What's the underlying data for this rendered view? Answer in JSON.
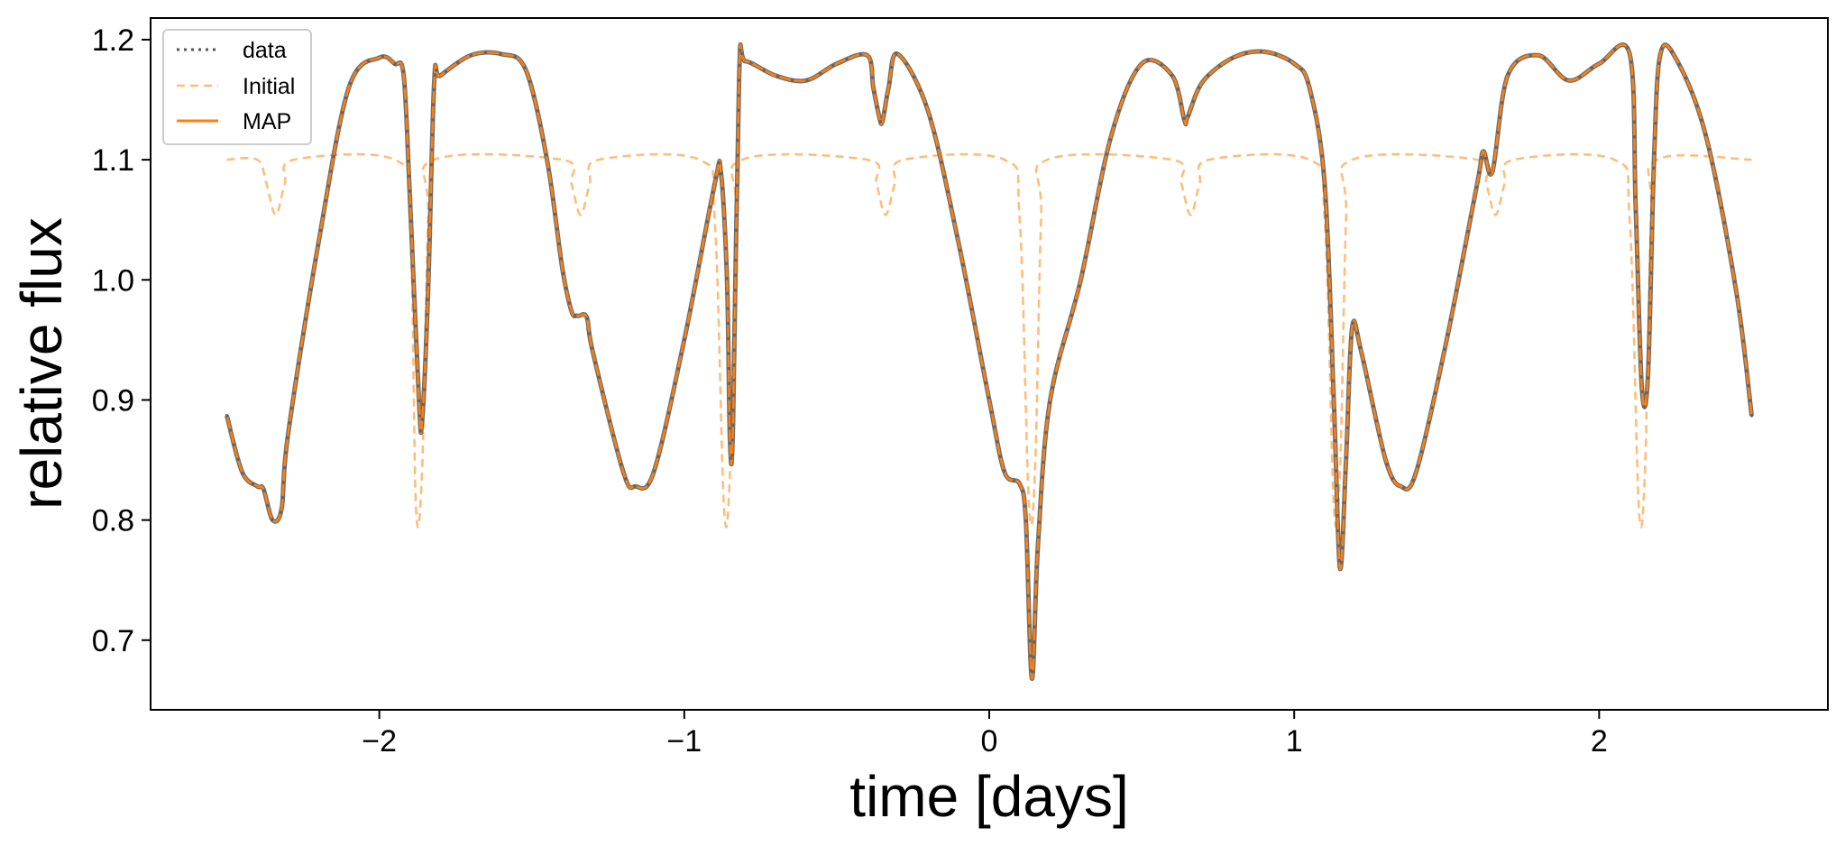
{
  "chart_data": {
    "type": "line",
    "title": "",
    "xlabel": "time [days]",
    "ylabel": "relative flux",
    "xlim": [
      -2.75,
      2.75
    ],
    "ylim": [
      0.642,
      1.218
    ],
    "xticks": [
      -2,
      -1,
      0,
      1,
      2
    ],
    "xtick_labels": [
      "−2",
      "−1",
      "0",
      "1",
      "2"
    ],
    "yticks": [
      0.7,
      0.8,
      0.9,
      1.0,
      1.1,
      1.2
    ],
    "ytick_labels": [
      "0.7",
      "0.8",
      "0.9",
      "1.0",
      "1.1",
      "1.2"
    ],
    "grid": false,
    "legend_position": "top-left",
    "legend": [
      {
        "label": "data",
        "style": "dotted",
        "color": "#555555"
      },
      {
        "label": "Initial",
        "style": "dashed",
        "color": "#ffbb78"
      },
      {
        "label": "MAP",
        "style": "solid",
        "color": "#ff7f0e"
      }
    ],
    "series": [
      {
        "name": "MAP",
        "color": "#ff7f0e",
        "style": "solid",
        "x": [
          -2.5,
          -2.45,
          -2.4,
          -2.38,
          -2.35,
          -2.32,
          -2.3,
          -2.2,
          -2.1,
          -2.0,
          -1.95,
          -1.92,
          -1.9,
          -1.87,
          -1.86,
          -1.84,
          -1.82,
          -1.8,
          -1.7,
          -1.6,
          -1.52,
          -1.45,
          -1.4,
          -1.37,
          -1.35,
          -1.32,
          -1.3,
          -1.2,
          -1.16,
          -1.1,
          -1.0,
          -0.9,
          -0.88,
          -0.86,
          -0.85,
          -0.84,
          -0.82,
          -0.8,
          -0.7,
          -0.6,
          -0.5,
          -0.4,
          -0.38,
          -0.36,
          -0.35,
          -0.33,
          -0.3,
          -0.2,
          -0.1,
          0.0,
          0.05,
          0.1,
          0.12,
          0.14,
          0.16,
          0.2,
          0.3,
          0.4,
          0.5,
          0.6,
          0.64,
          0.65,
          0.7,
          0.8,
          0.9,
          1.0,
          1.05,
          1.1,
          1.13,
          1.15,
          1.17,
          1.19,
          1.22,
          1.3,
          1.35,
          1.4,
          1.5,
          1.6,
          1.62,
          1.65,
          1.7,
          1.8,
          1.9,
          2.0,
          2.1,
          2.12,
          2.14,
          2.16,
          2.18,
          2.2,
          2.25,
          2.35,
          2.45,
          2.5
        ],
        "y": [
          0.887,
          0.84,
          0.828,
          0.826,
          0.8,
          0.81,
          0.87,
          1.03,
          1.16,
          1.185,
          1.18,
          1.17,
          1.07,
          0.9,
          0.882,
          0.99,
          1.165,
          1.17,
          1.187,
          1.188,
          1.175,
          1.1,
          1.01,
          0.974,
          0.97,
          0.969,
          0.94,
          0.84,
          0.828,
          0.84,
          0.95,
          1.08,
          1.09,
          1.0,
          0.866,
          0.88,
          1.17,
          1.182,
          1.17,
          1.166,
          1.18,
          1.187,
          1.16,
          1.135,
          1.132,
          1.16,
          1.188,
          1.14,
          1.03,
          0.9,
          0.84,
          0.83,
          0.8,
          0.668,
          0.78,
          0.9,
          1.0,
          1.12,
          1.18,
          1.17,
          1.133,
          1.135,
          1.165,
          1.185,
          1.19,
          1.18,
          1.16,
          1.08,
          0.9,
          0.76,
          0.85,
          0.96,
          0.94,
          0.85,
          0.828,
          0.84,
          0.95,
          1.08,
          1.107,
          1.09,
          1.17,
          1.187,
          1.166,
          1.18,
          1.188,
          1.06,
          0.91,
          0.92,
          1.1,
          1.187,
          1.185,
          1.12,
          0.99,
          0.887
        ]
      },
      {
        "name": "Initial",
        "color": "#ffbb78",
        "style": "dashed",
        "x": [
          -2.5,
          -2.4,
          -2.37,
          -2.34,
          -2.31,
          -2.28,
          -1.95,
          -1.9,
          -1.88,
          -1.86,
          -1.84,
          -1.82,
          -1.4,
          -1.37,
          -1.34,
          -1.31,
          -1.28,
          -0.95,
          -0.9,
          -0.87,
          -0.85,
          -0.83,
          -0.81,
          -0.4,
          -0.37,
          -0.34,
          -0.31,
          -0.28,
          0.05,
          0.1,
          0.13,
          0.15,
          0.17,
          0.19,
          0.6,
          0.63,
          0.66,
          0.69,
          0.72,
          1.05,
          1.1,
          1.13,
          1.15,
          1.17,
          1.19,
          1.6,
          1.63,
          1.66,
          1.69,
          1.72,
          2.05,
          2.1,
          2.13,
          2.15,
          2.17,
          2.19,
          2.5
        ],
        "y": [
          1.1,
          1.1,
          1.08,
          1.054,
          1.08,
          1.1,
          1.1,
          1.05,
          0.811,
          0.84,
          1.05,
          1.1,
          1.1,
          1.08,
          1.054,
          1.08,
          1.1,
          1.1,
          1.05,
          0.811,
          0.84,
          1.05,
          1.1,
          1.1,
          1.08,
          1.054,
          1.08,
          1.1,
          1.1,
          1.05,
          0.813,
          0.84,
          1.05,
          1.1,
          1.1,
          1.08,
          1.054,
          1.08,
          1.1,
          1.1,
          1.05,
          0.811,
          0.84,
          1.05,
          1.1,
          1.1,
          1.08,
          1.054,
          1.08,
          1.1,
          1.1,
          1.05,
          0.811,
          0.84,
          1.05,
          1.1,
          1.1
        ]
      }
    ]
  }
}
